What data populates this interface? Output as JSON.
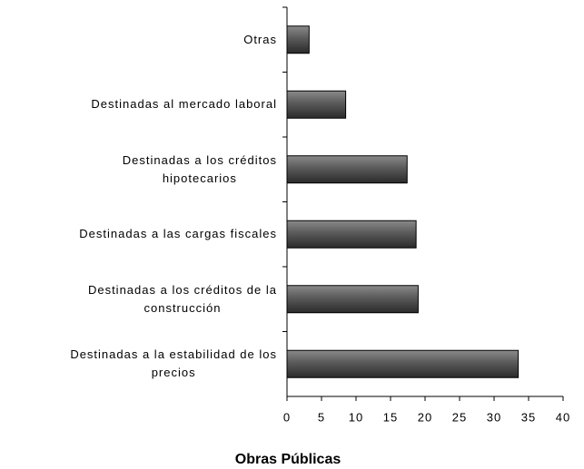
{
  "chart_data": {
    "type": "barh",
    "categories": [
      "Otras",
      "Destinadas al mercado laboral",
      "Destinadas a los créditos\nhipotecarios",
      "Destinadas a las cargas fiscales",
      "Destinadas a los créditos de la\nconstrucción",
      "Destinadas a la estabilidad de los\nprecios"
    ],
    "values": [
      3.2,
      8.5,
      17.4,
      18.7,
      19.0,
      33.5
    ],
    "color": "#5a5a5a",
    "xlabel": "Obras Públicas",
    "xlim": [
      0,
      40
    ],
    "xticks": [
      0,
      5,
      10,
      15,
      20,
      25,
      30,
      35,
      40
    ]
  }
}
